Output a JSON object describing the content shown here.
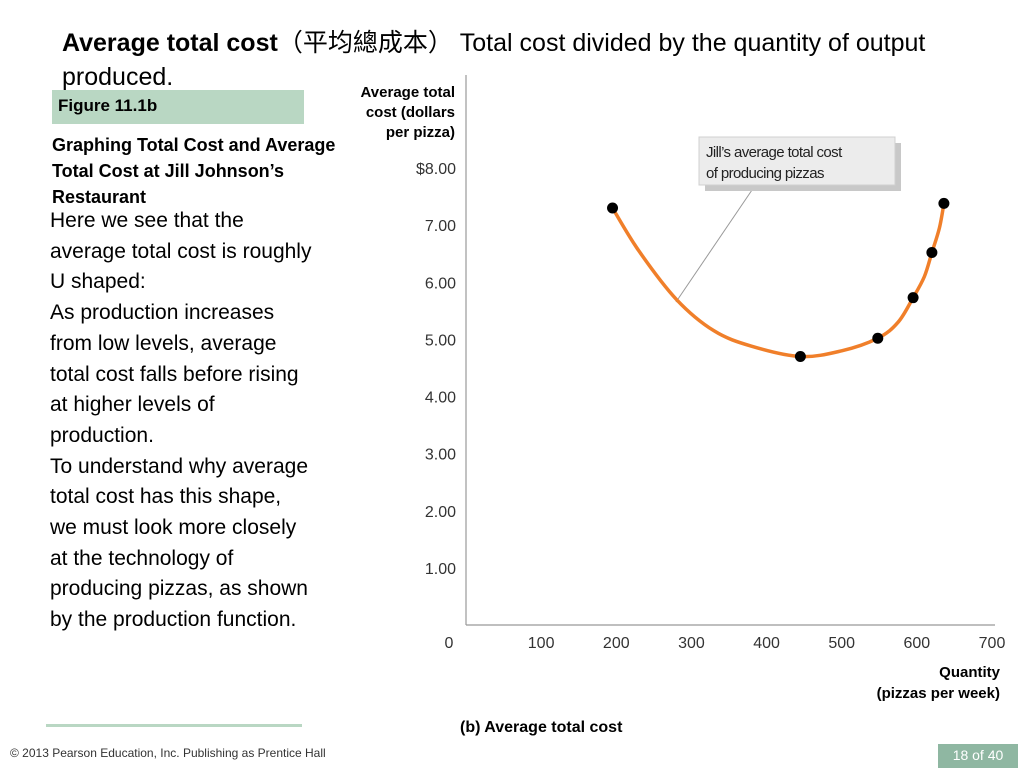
{
  "slide": {
    "title_term": "Average total cost",
    "title_chinese": "（平均總成本）",
    "title_definition": "Total cost divided by the quantity of output produced.",
    "figure_label": "Figure 11.1b",
    "figure_heading": "Graphing Total Cost and Average Total Cost at Jill Johnson’s Restaurant",
    "body_paragraphs": [
      "Here we see that the average total cost is roughly U shaped:",
      "As production increases from low levels, average total cost falls before rising at higher levels of production.",
      "To understand why average total cost has this shape, we must look more closely at the technology of producing pizzas, as shown by the production function."
    ],
    "footer": "© 2013 Pearson Education, Inc. Publishing as Prentice Hall",
    "page": "18 of 40"
  },
  "colors": {
    "curve": "#f07f2a",
    "accent_box": "#b9d7c3",
    "page_box": "#8fb7a2"
  },
  "chart_data": {
    "type": "line",
    "caption": "(b) Average total cost",
    "ylabel_lines": [
      "Average total",
      "cost (dollars",
      "per pizza)"
    ],
    "xlabel_lines": [
      "Quantity",
      "(pizzas per week)"
    ],
    "xlim": [
      0,
      700
    ],
    "ylim": [
      0,
      8
    ],
    "x_ticks": [
      0,
      100,
      200,
      300,
      400,
      500,
      600,
      700
    ],
    "y_ticks": [
      1,
      2,
      3,
      4,
      5,
      6,
      7,
      8
    ],
    "y_tick_labels": [
      "1.00",
      "2.00",
      "3.00",
      "4.00",
      "5.00",
      "6.00",
      "7.00",
      "$8.00"
    ],
    "grid": false,
    "annotation": [
      "Jill’s average total cost",
      "of producing pizzas"
    ],
    "points": [
      {
        "x": 195,
        "y": 7.3
      },
      {
        "x": 445,
        "y": 4.7
      },
      {
        "x": 548,
        "y": 5.02
      },
      {
        "x": 595,
        "y": 5.73
      },
      {
        "x": 620,
        "y": 6.52
      },
      {
        "x": 636,
        "y": 7.38
      }
    ],
    "curve": [
      {
        "x": 195,
        "y": 7.3
      },
      {
        "x": 230,
        "y": 6.55
      },
      {
        "x": 280,
        "y": 5.7
      },
      {
        "x": 330,
        "y": 5.15
      },
      {
        "x": 380,
        "y": 4.88
      },
      {
        "x": 445,
        "y": 4.7
      },
      {
        "x": 500,
        "y": 4.8
      },
      {
        "x": 548,
        "y": 5.02
      },
      {
        "x": 575,
        "y": 5.3
      },
      {
        "x": 595,
        "y": 5.73
      },
      {
        "x": 610,
        "y": 6.1
      },
      {
        "x": 620,
        "y": 6.52
      },
      {
        "x": 630,
        "y": 6.95
      },
      {
        "x": 636,
        "y": 7.38
      }
    ]
  }
}
